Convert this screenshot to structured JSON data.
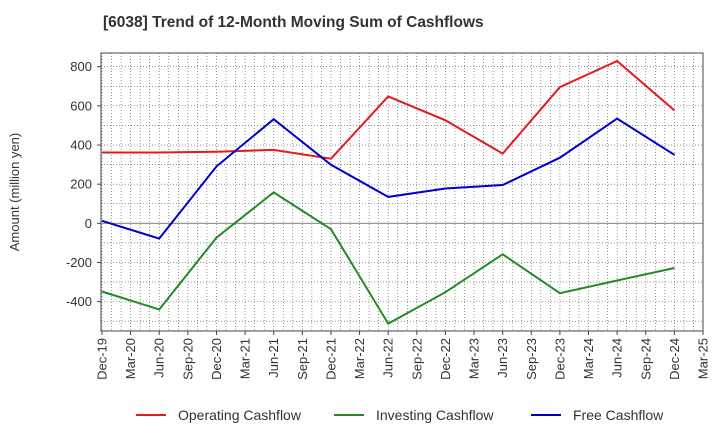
{
  "chart_data": {
    "type": "line",
    "title": "[6038]  Trend of 12-Month Moving Sum of Cashflows",
    "ylabel": "Amount (million yen)",
    "xlabel": "",
    "ylim": [
      -550,
      870
    ],
    "yticks": [
      -400,
      -200,
      0,
      200,
      400,
      600,
      800
    ],
    "ytick_labels": [
      "-400",
      "-200",
      "0",
      "200",
      "400",
      "600",
      "800"
    ],
    "categories": [
      "Dec-19",
      "Mar-20",
      "Jun-20",
      "Sep-20",
      "Dec-20",
      "Mar-21",
      "Jun-21",
      "Sep-21",
      "Dec-21",
      "Mar-22",
      "Jun-22",
      "Sep-22",
      "Dec-22",
      "Mar-23",
      "Jun-23",
      "Sep-23",
      "Dec-23",
      "Mar-24",
      "Jun-24",
      "Sep-24",
      "Dec-24",
      "Mar-25"
    ],
    "grid": true,
    "legend_position": "bottom",
    "series": [
      {
        "name": "Operating Cashflow",
        "color": "#e41a1c",
        "points": [
          {
            "x": "Dec-19",
            "y": 362
          },
          {
            "x": "Jun-20",
            "y": 362
          },
          {
            "x": "Dec-20",
            "y": 366
          },
          {
            "x": "Jun-21",
            "y": 375
          },
          {
            "x": "Dec-21",
            "y": 330
          },
          {
            "x": "Jun-22",
            "y": 648
          },
          {
            "x": "Dec-22",
            "y": 526
          },
          {
            "x": "Jun-23",
            "y": 356
          },
          {
            "x": "Dec-23",
            "y": 696
          },
          {
            "x": "Jun-24",
            "y": 829
          },
          {
            "x": "Dec-24",
            "y": 577
          }
        ]
      },
      {
        "name": "Investing Cashflow",
        "color": "#228b22",
        "points": [
          {
            "x": "Dec-19",
            "y": -348
          },
          {
            "x": "Jun-20",
            "y": -440
          },
          {
            "x": "Dec-20",
            "y": -73
          },
          {
            "x": "Jun-21",
            "y": 158
          },
          {
            "x": "Dec-21",
            "y": -30
          },
          {
            "x": "Jun-22",
            "y": -512
          },
          {
            "x": "Dec-22",
            "y": -352
          },
          {
            "x": "Jun-23",
            "y": -158
          },
          {
            "x": "Dec-23",
            "y": -357
          },
          {
            "x": "Jun-24",
            "y": -292
          },
          {
            "x": "Dec-24",
            "y": -228
          }
        ]
      },
      {
        "name": "Free Cashflow",
        "color": "#0000cd",
        "points": [
          {
            "x": "Dec-19",
            "y": 13
          },
          {
            "x": "Jun-20",
            "y": -78
          },
          {
            "x": "Dec-20",
            "y": 291
          },
          {
            "x": "Jun-21",
            "y": 532
          },
          {
            "x": "Dec-21",
            "y": 299
          },
          {
            "x": "Jun-22",
            "y": 135
          },
          {
            "x": "Dec-22",
            "y": 178
          },
          {
            "x": "Jun-23",
            "y": 196
          },
          {
            "x": "Dec-23",
            "y": 335
          },
          {
            "x": "Jun-24",
            "y": 535
          },
          {
            "x": "Dec-24",
            "y": 350
          }
        ]
      }
    ]
  }
}
